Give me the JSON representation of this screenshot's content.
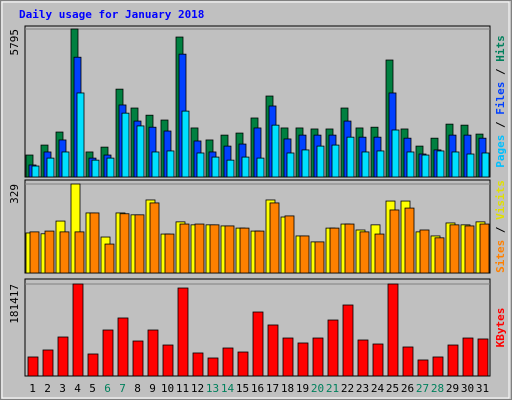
{
  "chart_data": {
    "type": "bar",
    "title": "Daily usage for January 2018",
    "categories": [
      "1",
      "2",
      "3",
      "4",
      "5",
      "6",
      "7",
      "8",
      "9",
      "10",
      "11",
      "12",
      "13",
      "14",
      "15",
      "16",
      "17",
      "18",
      "19",
      "20",
      "21",
      "22",
      "23",
      "24",
      "25",
      "26",
      "27",
      "28",
      "29",
      "30",
      "31"
    ],
    "category_colors": [
      "#000000",
      "#000000",
      "#000000",
      "#000000",
      "#000000",
      "#00805c",
      "#00805c",
      "#000000",
      "#000000",
      "#000000",
      "#000000",
      "#000000",
      "#00805c",
      "#00805c",
      "#000000",
      "#000000",
      "#000000",
      "#000000",
      "#000000",
      "#00805c",
      "#00805c",
      "#000000",
      "#000000",
      "#000000",
      "#000000",
      "#000000",
      "#00805c",
      "#00805c",
      "#000000",
      "#000000",
      "#000000"
    ],
    "legend_separator": " / ",
    "panels": [
      {
        "ylim": [
          0,
          5795
        ],
        "yticks": [
          5795
        ],
        "series": [
          {
            "name": "Hits",
            "color": "#008040",
            "label_color": "#00805c",
            "values": [
              860,
              1250,
              1760,
              5795,
              980,
              1170,
              3440,
              2700,
              2420,
              2230,
              5480,
              1920,
              1450,
              1640,
              1720,
              2310,
              3170,
              1920,
              1920,
              1880,
              1880,
              2700,
              1920,
              1950,
              4580,
              1880,
              1210,
              1520,
              2070,
              2030,
              1680
            ]
          },
          {
            "name": "Files",
            "color": "#0040ff",
            "label_color": "#0040ff",
            "values": [
              470,
              980,
              1450,
              4690,
              740,
              860,
              2820,
              2190,
              1950,
              1800,
              4810,
              1410,
              980,
              1210,
              1290,
              1920,
              2780,
              1490,
              1640,
              1640,
              1640,
              2190,
              1560,
              1560,
              3290,
              1520,
              900,
              1060,
              1640,
              1640,
              1520
            ]
          },
          {
            "name": "Pages",
            "color": "#00e0ff",
            "label_color": "#00c0ff",
            "values": [
              430,
              740,
              980,
              3290,
              660,
              740,
              2500,
              2000,
              980,
              1020,
              2580,
              940,
              780,
              660,
              780,
              740,
              2030,
              940,
              1060,
              1210,
              1250,
              1560,
              980,
              1020,
              1840,
              980,
              860,
              1020,
              980,
              900,
              940
            ]
          }
        ]
      },
      {
        "ylim": [
          0,
          329
        ],
        "yticks": [
          329
        ],
        "series": [
          {
            "name": "Visits",
            "color": "#ffff00",
            "label_color": "#e0e000",
            "values": [
              148,
              145,
              192,
              329,
              222,
              133,
              222,
              215,
              270,
              144,
              189,
              178,
              178,
              174,
              166,
              155,
              270,
              207,
              137,
              115,
              166,
              181,
              159,
              178,
              266,
              266,
              152,
              137,
              185,
              178,
              189
            ]
          },
          {
            "name": "Sites",
            "color": "#ff8000",
            "label_color": "#ff8000",
            "values": [
              152,
              155,
              152,
              152,
              222,
              107,
              219,
              215,
              259,
              144,
              181,
              181,
              178,
              174,
              166,
              155,
              259,
              211,
              137,
              115,
              166,
              181,
              152,
              144,
              233,
              240,
              159,
              130,
              178,
              174,
              181
            ]
          }
        ]
      },
      {
        "ylim": [
          0,
          181417
        ],
        "yticks": [
          181417
        ],
        "series": [
          {
            "name": "KBytes",
            "color": "#ff0000",
            "label_color": "#ff0000",
            "values": [
              37500,
              51300,
              76900,
              181417,
              43400,
              90700,
              114400,
              69000,
              90700,
              61100,
              173500,
              45400,
              35500,
              55200,
              47300,
              126200,
              100600,
              74900,
              65100,
              74900,
              110400,
              140000,
              71000,
              63100,
              181417,
              57200,
              31600,
              37500,
              61100,
              74900,
              73000
            ]
          }
        ]
      }
    ]
  }
}
